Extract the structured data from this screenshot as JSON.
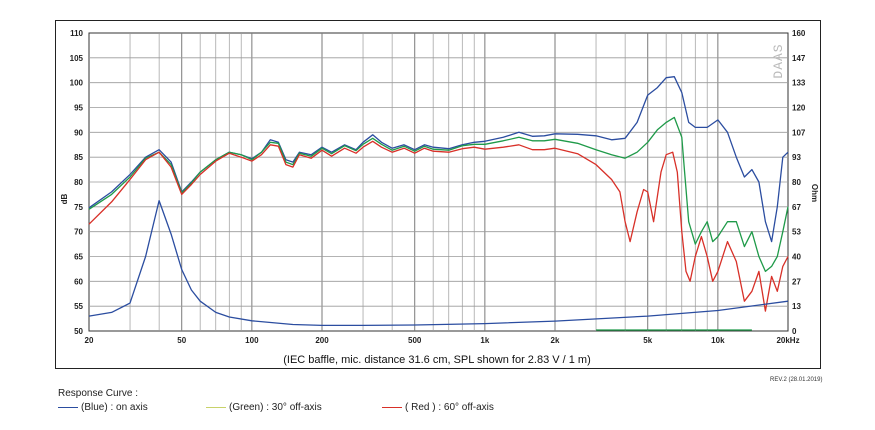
{
  "chart_data": {
    "type": "line",
    "caption": "(IEC baffle, mic. distance 31.6 cm, SPL shown for 2.83 V / 1 m)",
    "ylabel": "dB",
    "y2label": "Ohm",
    "watermark": "DAAS",
    "xscale": "log",
    "xlim": [
      20,
      20000
    ],
    "ylim": [
      50,
      110
    ],
    "y2lim": [
      0,
      160
    ],
    "grid": true,
    "x_ticks": [
      {
        "value": 20,
        "label": "20"
      },
      {
        "value": 50,
        "label": "50"
      },
      {
        "value": 100,
        "label": "100"
      },
      {
        "value": 200,
        "label": "200"
      },
      {
        "value": 500,
        "label": "500"
      },
      {
        "value": 1000,
        "label": "1k"
      },
      {
        "value": 2000,
        "label": "2k"
      },
      {
        "value": 5000,
        "label": "5k"
      },
      {
        "value": 10000,
        "label": "10k"
      },
      {
        "value": 20000,
        "label": "20kHz"
      }
    ],
    "y_ticks": [
      "50",
      "55",
      "60",
      "65",
      "70",
      "75",
      "80",
      "85",
      "90",
      "95",
      "100",
      "105",
      "110"
    ],
    "y2_ticks": [
      "0",
      "13",
      "27",
      "40",
      "53",
      "67",
      "80",
      "93",
      "107",
      "120",
      "133",
      "147",
      "160"
    ],
    "series": [
      {
        "name": "on axis",
        "color": "#2b4da0",
        "axis": "left",
        "points": [
          [
            20,
            74.8
          ],
          [
            25,
            78
          ],
          [
            30,
            81.5
          ],
          [
            35,
            85
          ],
          [
            40,
            86.5
          ],
          [
            45,
            84
          ],
          [
            50,
            78
          ],
          [
            55,
            80
          ],
          [
            60,
            82
          ],
          [
            70,
            84.5
          ],
          [
            80,
            86
          ],
          [
            90,
            85.5
          ],
          [
            100,
            84.7
          ],
          [
            110,
            86
          ],
          [
            120,
            88.5
          ],
          [
            130,
            88
          ],
          [
            140,
            84.5
          ],
          [
            150,
            84
          ],
          [
            160,
            86
          ],
          [
            180,
            85.5
          ],
          [
            200,
            87
          ],
          [
            220,
            86
          ],
          [
            250,
            87.5
          ],
          [
            280,
            86.5
          ],
          [
            300,
            88
          ],
          [
            330,
            89.5
          ],
          [
            360,
            88
          ],
          [
            400,
            86.8
          ],
          [
            450,
            87.5
          ],
          [
            500,
            86.5
          ],
          [
            550,
            87.5
          ],
          [
            600,
            87
          ],
          [
            700,
            86.7
          ],
          [
            800,
            87.5
          ],
          [
            900,
            88
          ],
          [
            1000,
            88.2
          ],
          [
            1200,
            89
          ],
          [
            1400,
            90
          ],
          [
            1600,
            89.2
          ],
          [
            1800,
            89.3
          ],
          [
            2000,
            89.7
          ],
          [
            2500,
            89.6
          ],
          [
            3000,
            89.3
          ],
          [
            3500,
            88.5
          ],
          [
            4000,
            88.8
          ],
          [
            4500,
            92
          ],
          [
            5000,
            97.5
          ],
          [
            5500,
            99
          ],
          [
            6000,
            101
          ],
          [
            6500,
            101.2
          ],
          [
            7000,
            98
          ],
          [
            7500,
            92
          ],
          [
            8000,
            91
          ],
          [
            9000,
            91
          ],
          [
            10000,
            92.5
          ],
          [
            11000,
            90
          ],
          [
            12000,
            85
          ],
          [
            13000,
            81
          ],
          [
            14000,
            82.5
          ],
          [
            15000,
            80
          ],
          [
            16000,
            72
          ],
          [
            17000,
            68
          ],
          [
            18000,
            75
          ],
          [
            19000,
            85
          ],
          [
            20000,
            86
          ]
        ]
      },
      {
        "name": "30° off-axis",
        "color": "#1f9a49",
        "axis": "left",
        "points": [
          [
            20,
            74.5
          ],
          [
            25,
            77.5
          ],
          [
            30,
            81
          ],
          [
            35,
            84.8
          ],
          [
            40,
            86
          ],
          [
            45,
            83.5
          ],
          [
            50,
            77.8
          ],
          [
            55,
            79.8
          ],
          [
            60,
            82
          ],
          [
            70,
            84.5
          ],
          [
            80,
            86
          ],
          [
            90,
            85.5
          ],
          [
            100,
            84.5
          ],
          [
            110,
            86
          ],
          [
            120,
            88
          ],
          [
            130,
            87.8
          ],
          [
            140,
            84
          ],
          [
            150,
            83.5
          ],
          [
            160,
            85.8
          ],
          [
            180,
            85.2
          ],
          [
            200,
            86.8
          ],
          [
            220,
            85.7
          ],
          [
            250,
            87.3
          ],
          [
            280,
            86.3
          ],
          [
            300,
            87.6
          ],
          [
            330,
            88.8
          ],
          [
            360,
            87.6
          ],
          [
            400,
            86.4
          ],
          [
            450,
            87.2
          ],
          [
            500,
            86.2
          ],
          [
            550,
            87.2
          ],
          [
            600,
            86.6
          ],
          [
            700,
            86.4
          ],
          [
            800,
            87.3
          ],
          [
            900,
            87.6
          ],
          [
            1000,
            87.6
          ],
          [
            1200,
            88.3
          ],
          [
            1400,
            89
          ],
          [
            1600,
            88.3
          ],
          [
            1800,
            88.3
          ],
          [
            2000,
            88.6
          ],
          [
            2500,
            87.8
          ],
          [
            3000,
            86.5
          ],
          [
            3500,
            85.5
          ],
          [
            4000,
            84.8
          ],
          [
            4500,
            86
          ],
          [
            5000,
            88
          ],
          [
            5500,
            90.5
          ],
          [
            6000,
            92
          ],
          [
            6500,
            93
          ],
          [
            7000,
            89
          ],
          [
            7200,
            82
          ],
          [
            7500,
            72
          ],
          [
            8000,
            67.5
          ],
          [
            8500,
            70
          ],
          [
            9000,
            72
          ],
          [
            9500,
            68
          ],
          [
            10000,
            69
          ],
          [
            11000,
            72
          ],
          [
            12000,
            72
          ],
          [
            13000,
            67
          ],
          [
            14000,
            70
          ],
          [
            15000,
            65
          ],
          [
            16000,
            62
          ],
          [
            17000,
            63
          ],
          [
            18000,
            65
          ],
          [
            19000,
            70
          ],
          [
            20000,
            75
          ]
        ]
      },
      {
        "name": "60° off-axis",
        "color": "#d83028",
        "axis": "left",
        "points": [
          [
            20,
            71.5
          ],
          [
            25,
            76
          ],
          [
            30,
            80.5
          ],
          [
            35,
            84.5
          ],
          [
            40,
            86
          ],
          [
            45,
            83
          ],
          [
            50,
            77.5
          ],
          [
            55,
            79.5
          ],
          [
            60,
            81.5
          ],
          [
            70,
            84.2
          ],
          [
            80,
            85.8
          ],
          [
            90,
            85
          ],
          [
            100,
            84.2
          ],
          [
            110,
            85.5
          ],
          [
            120,
            87.5
          ],
          [
            130,
            87.2
          ],
          [
            140,
            83.5
          ],
          [
            150,
            83
          ],
          [
            160,
            85.5
          ],
          [
            180,
            84.8
          ],
          [
            200,
            86.4
          ],
          [
            220,
            85.2
          ],
          [
            250,
            86.8
          ],
          [
            280,
            85.8
          ],
          [
            300,
            87
          ],
          [
            330,
            88.2
          ],
          [
            360,
            87
          ],
          [
            400,
            86
          ],
          [
            450,
            86.8
          ],
          [
            500,
            85.8
          ],
          [
            550,
            86.8
          ],
          [
            600,
            86.2
          ],
          [
            700,
            86
          ],
          [
            800,
            86.7
          ],
          [
            900,
            87
          ],
          [
            1000,
            86.6
          ],
          [
            1200,
            87
          ],
          [
            1400,
            87.5
          ],
          [
            1600,
            86.5
          ],
          [
            1800,
            86.5
          ],
          [
            2000,
            86.8
          ],
          [
            2500,
            85.7
          ],
          [
            3000,
            83.5
          ],
          [
            3500,
            80.5
          ],
          [
            3800,
            78
          ],
          [
            4000,
            72
          ],
          [
            4200,
            68
          ],
          [
            4500,
            74
          ],
          [
            4800,
            78.5
          ],
          [
            5000,
            78
          ],
          [
            5300,
            72
          ],
          [
            5700,
            82
          ],
          [
            6000,
            85.5
          ],
          [
            6400,
            86
          ],
          [
            6700,
            82
          ],
          [
            7000,
            70
          ],
          [
            7300,
            62
          ],
          [
            7600,
            60
          ],
          [
            8000,
            65
          ],
          [
            8500,
            69
          ],
          [
            9000,
            65
          ],
          [
            9500,
            60
          ],
          [
            10000,
            62
          ],
          [
            11000,
            68
          ],
          [
            12000,
            64
          ],
          [
            13000,
            56
          ],
          [
            14000,
            58
          ],
          [
            15000,
            62
          ],
          [
            16000,
            54
          ],
          [
            17000,
            61
          ],
          [
            18000,
            58
          ],
          [
            19000,
            63
          ],
          [
            20000,
            65
          ]
        ]
      },
      {
        "name": "impedance",
        "color": "#2b4da0",
        "axis": "right",
        "points": [
          [
            20,
            8
          ],
          [
            25,
            10
          ],
          [
            30,
            15
          ],
          [
            35,
            40
          ],
          [
            40,
            70
          ],
          [
            45,
            52
          ],
          [
            50,
            33
          ],
          [
            55,
            22
          ],
          [
            60,
            16
          ],
          [
            70,
            10
          ],
          [
            80,
            7.5
          ],
          [
            100,
            5.5
          ],
          [
            150,
            3.5
          ],
          [
            200,
            3
          ],
          [
            300,
            3
          ],
          [
            500,
            3.2
          ],
          [
            1000,
            4
          ],
          [
            2000,
            5.3
          ],
          [
            5000,
            8
          ],
          [
            10000,
            11
          ],
          [
            20000,
            16
          ]
        ]
      },
      {
        "name": "green marker",
        "color": "#1f9a49",
        "axis": "left",
        "points": [
          [
            3000,
            50.2
          ],
          [
            14000,
            50.2
          ]
        ]
      }
    ]
  },
  "revision": "REV.2 (28.01.2019)",
  "legend": {
    "title": "Response Curve :",
    "items": [
      {
        "label": "(Blue)  : on axis",
        "color": "#2b4da0"
      },
      {
        "label": "(Green) : 30° off-axis",
        "color": "#c8d26a"
      },
      {
        "label": "( Red ) : 60° off-axis",
        "color": "#d83028"
      }
    ]
  }
}
